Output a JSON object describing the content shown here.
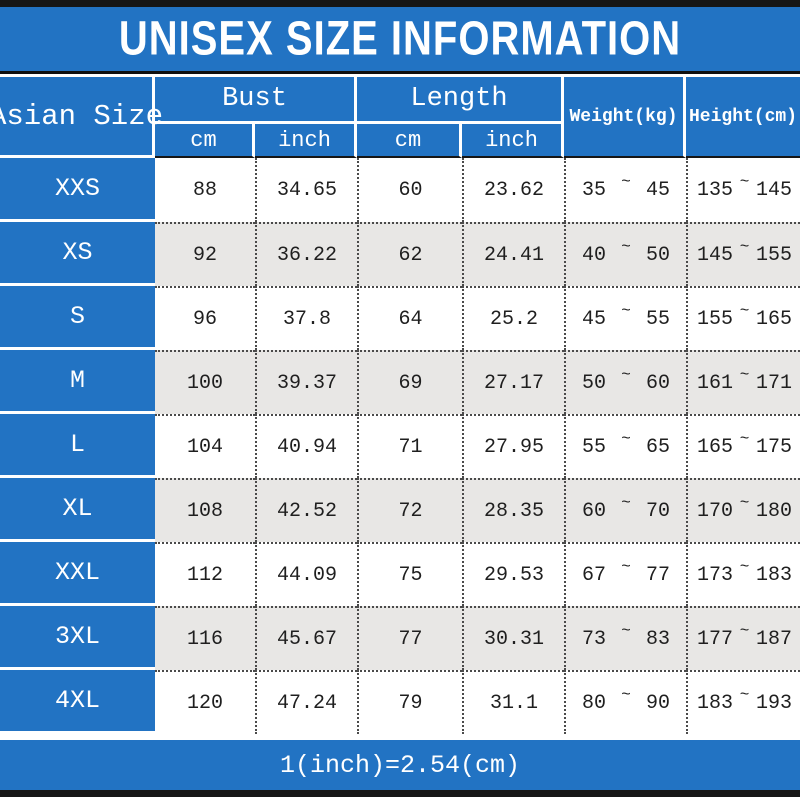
{
  "title": "UNISEX SIZE INFORMATION",
  "footer_note": "1(inch)=2.54(cm)",
  "colors": {
    "header_blue": "#2273c3",
    "row_gray": "#e8e7e5",
    "bar_black": "#161616"
  },
  "table": {
    "corner_header": "Asian Size",
    "groups": [
      {
        "label": "Bust",
        "sub": [
          "cm",
          "inch"
        ]
      },
      {
        "label": "Length",
        "sub": [
          "cm",
          "inch"
        ]
      }
    ],
    "single_headers": [
      "Weight(kg)",
      "Height(cm)"
    ],
    "range_separator": "~",
    "rows": [
      {
        "size": "XXS",
        "bust_cm": "88",
        "bust_inch": "34.65",
        "length_cm": "60",
        "length_inch": "23.62",
        "weight": [
          "35",
          "45"
        ],
        "height": [
          "135",
          "145"
        ]
      },
      {
        "size": "XS",
        "bust_cm": "92",
        "bust_inch": "36.22",
        "length_cm": "62",
        "length_inch": "24.41",
        "weight": [
          "40",
          "50"
        ],
        "height": [
          "145",
          "155"
        ]
      },
      {
        "size": "S",
        "bust_cm": "96",
        "bust_inch": "37.8",
        "length_cm": "64",
        "length_inch": "25.2",
        "weight": [
          "45",
          "55"
        ],
        "height": [
          "155",
          "165"
        ]
      },
      {
        "size": "M",
        "bust_cm": "100",
        "bust_inch": "39.37",
        "length_cm": "69",
        "length_inch": "27.17",
        "weight": [
          "50",
          "60"
        ],
        "height": [
          "161",
          "171"
        ]
      },
      {
        "size": "L",
        "bust_cm": "104",
        "bust_inch": "40.94",
        "length_cm": "71",
        "length_inch": "27.95",
        "weight": [
          "55",
          "65"
        ],
        "height": [
          "165",
          "175"
        ]
      },
      {
        "size": "XL",
        "bust_cm": "108",
        "bust_inch": "42.52",
        "length_cm": "72",
        "length_inch": "28.35",
        "weight": [
          "60",
          "70"
        ],
        "height": [
          "170",
          "180"
        ]
      },
      {
        "size": "XXL",
        "bust_cm": "112",
        "bust_inch": "44.09",
        "length_cm": "75",
        "length_inch": "29.53",
        "weight": [
          "67",
          "77"
        ],
        "height": [
          "173",
          "183"
        ]
      },
      {
        "size": "3XL",
        "bust_cm": "116",
        "bust_inch": "45.67",
        "length_cm": "77",
        "length_inch": "30.31",
        "weight": [
          "73",
          "83"
        ],
        "height": [
          "177",
          "187"
        ]
      },
      {
        "size": "4XL",
        "bust_cm": "120",
        "bust_inch": "47.24",
        "length_cm": "79",
        "length_inch": "31.1",
        "weight": [
          "80",
          "90"
        ],
        "height": [
          "183",
          "193"
        ]
      }
    ]
  },
  "chart_data": {
    "type": "table",
    "title": "UNISEX SIZE INFORMATION",
    "columns": [
      "Asian Size",
      "Bust cm",
      "Bust inch",
      "Length cm",
      "Length inch",
      "Weight(kg)",
      "Height(cm)"
    ],
    "rows": [
      [
        "XXS",
        88,
        34.65,
        60,
        23.62,
        "35~45",
        "135~145"
      ],
      [
        "XS",
        92,
        36.22,
        62,
        24.41,
        "40~50",
        "145~155"
      ],
      [
        "S",
        96,
        37.8,
        64,
        25.2,
        "45~55",
        "155~165"
      ],
      [
        "M",
        100,
        39.37,
        69,
        27.17,
        "50~60",
        "161~171"
      ],
      [
        "L",
        104,
        40.94,
        71,
        27.95,
        "55~65",
        "165~175"
      ],
      [
        "XL",
        108,
        42.52,
        72,
        28.35,
        "60~70",
        "170~180"
      ],
      [
        "XXL",
        112,
        44.09,
        75,
        29.53,
        "67~77",
        "173~183"
      ],
      [
        "3XL",
        116,
        45.67,
        77,
        30.31,
        "73~83",
        "177~187"
      ],
      [
        "4XL",
        120,
        47.24,
        79,
        31.1,
        "80~90",
        "183~193"
      ]
    ],
    "note": "1(inch)=2.54(cm)"
  }
}
